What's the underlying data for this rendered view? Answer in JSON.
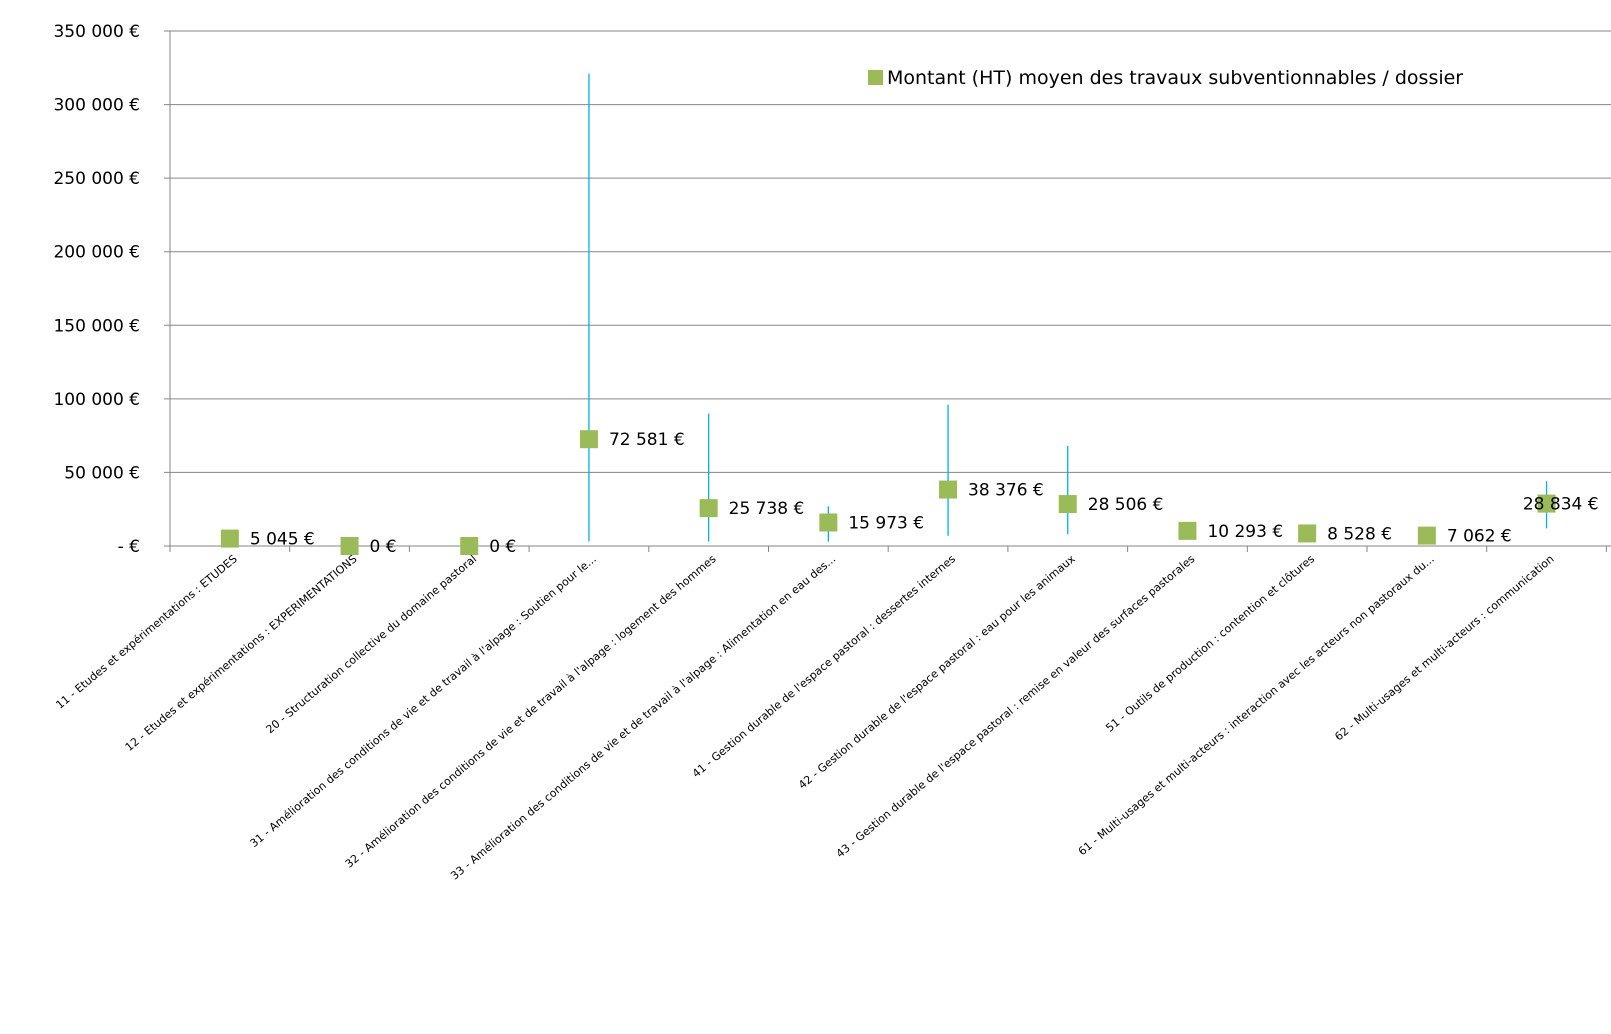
{
  "chart_data": {
    "type": "scatter",
    "title": "",
    "xlabel": "",
    "ylabel": "",
    "ylim": [
      0,
      350000
    ],
    "y_ticks": [
      0,
      50000,
      100000,
      150000,
      200000,
      250000,
      300000,
      350000
    ],
    "y_tick_labels": [
      "-   €",
      "50 000 €",
      "100 000 €",
      "150 000 €",
      "200 000 €",
      "250 000 €",
      "300 000 €",
      "350 000 €"
    ],
    "grid": true,
    "legend_position": "top-right",
    "categories": [
      "11 - Etudes et expérimentations  : ETUDES",
      "12 - Etudes et expérimentations  : EXPERIMENTATIONS",
      "20 - Structuration  collective  du domaine  pastoral",
      "31 - Amélioration  des conditions  de vie et de travail à l'alpage : Soutien pour le...",
      "32 - Amélioration  des conditions  de vie et de travail à l'alpage : logement des hommes",
      "33 - Amélioration des conditions  de vie et de travail à l'alpage : Alimentation  en eau des...",
      "41 - Gestion  durable de l'espace pastoral : dessertes internes",
      "42 - Gestion  durable de l'espace pastoral : eau pour les animaux",
      "43 - Gestion  durable de l'espace pastoral : remise en valeur des surfaces pastorales",
      "51 - Outils de production  : contention  et clôtures",
      "61 - Multi-usages  et multi-acteurs  : interaction  avec les acteurs non pastoraux du...",
      "62 - Multi-usages  et multi-acteurs  : communication"
    ],
    "series": [
      {
        "name": "Montant (HT) moyen des travaux subventionnables  / dossier",
        "color": "#9bbb59",
        "values": [
          5045,
          0,
          0,
          72581,
          25738,
          15973,
          38376,
          28506,
          10293,
          8528,
          7062,
          28834
        ],
        "labels": [
          "5 045 €",
          "0 €",
          "0 €",
          "72 581 €",
          "25 738 €",
          "15 973 €",
          "38 376 €",
          "28 506 €",
          "10 293 €",
          "8 528 €",
          "7 062 €",
          "28 834 €"
        ]
      }
    ],
    "range_bars": {
      "color": "#00b0f0",
      "ranges": [
        null,
        null,
        null,
        [
          3000,
          321000
        ],
        [
          3000,
          90000
        ],
        [
          3000,
          27000
        ],
        [
          7000,
          96000
        ],
        [
          8000,
          68000
        ],
        null,
        null,
        null,
        [
          12000,
          44000
        ]
      ]
    }
  }
}
